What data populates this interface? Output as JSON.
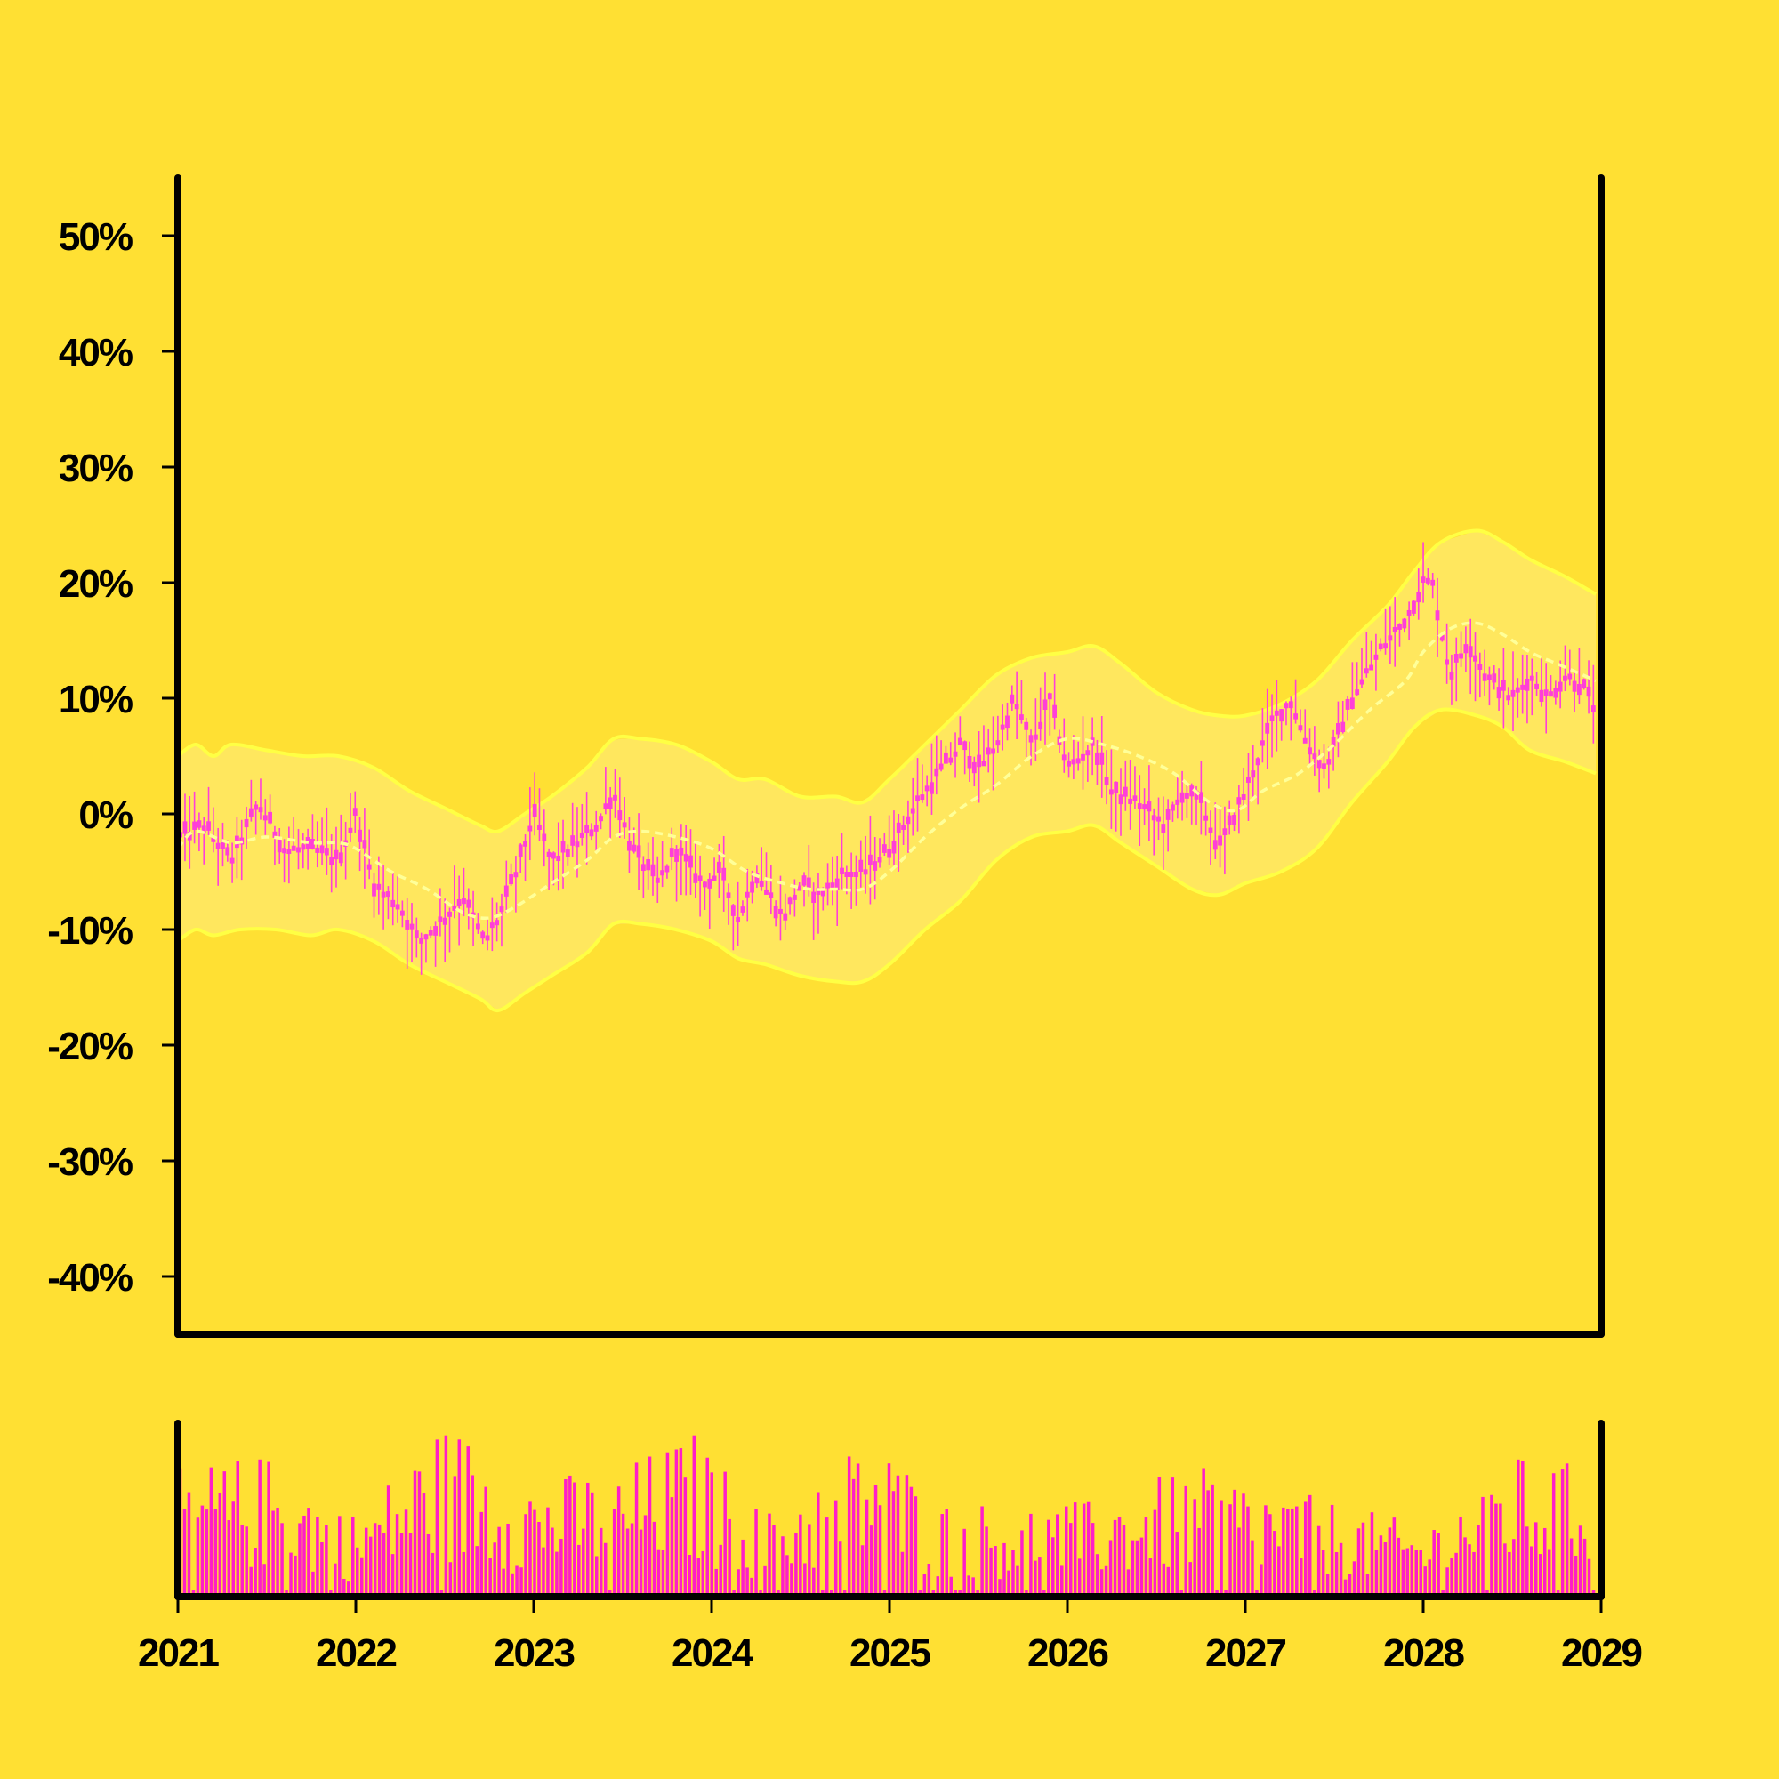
{
  "colors": {
    "background": "#ffe033",
    "candle": "#ff3fd8",
    "band_fill": "#ffe866",
    "band_line": "#ffff44",
    "mid_line": "#ffff99",
    "volume": "#ff1ec8",
    "axis": "#000000"
  },
  "chart_data": [
    {
      "type": "candlestick",
      "title": "",
      "xlabel": "",
      "ylabel": "",
      "xlim": [
        2021,
        2029
      ],
      "ylim": [
        -45,
        55
      ],
      "x_ticks": [
        "2021",
        "2022",
        "2023",
        "2024",
        "2025",
        "2026",
        "2027",
        "2028",
        "2029"
      ],
      "y_ticks": [
        "50%",
        "40%",
        "30%",
        "20%",
        "10%",
        "0%",
        "-10%",
        "-20%",
        "-30%",
        "-40%"
      ],
      "y_tick_values": [
        50,
        40,
        30,
        20,
        10,
        0,
        -10,
        -20,
        -30,
        -40
      ],
      "grid": false,
      "close_path": [
        [
          2021.0,
          -2
        ],
        [
          2021.15,
          -1
        ],
        [
          2021.3,
          -4
        ],
        [
          2021.45,
          1
        ],
        [
          2021.6,
          -3
        ],
        [
          2021.75,
          -3
        ],
        [
          2021.9,
          -4
        ],
        [
          2022.0,
          0
        ],
        [
          2022.1,
          -6
        ],
        [
          2022.25,
          -8
        ],
        [
          2022.35,
          -11
        ],
        [
          2022.5,
          -9
        ],
        [
          2022.6,
          -7
        ],
        [
          2022.72,
          -11
        ],
        [
          2022.8,
          -9
        ],
        [
          2022.9,
          -5
        ],
        [
          2023.0,
          0
        ],
        [
          2023.1,
          -4
        ],
        [
          2023.2,
          -3
        ],
        [
          2023.35,
          -1
        ],
        [
          2023.45,
          2
        ],
        [
          2023.55,
          -3
        ],
        [
          2023.7,
          -6
        ],
        [
          2023.8,
          -3
        ],
        [
          2023.95,
          -6
        ],
        [
          2024.05,
          -5
        ],
        [
          2024.15,
          -9
        ],
        [
          2024.25,
          -5
        ],
        [
          2024.4,
          -9
        ],
        [
          2024.5,
          -6
        ],
        [
          2024.6,
          -7
        ],
        [
          2024.75,
          -5
        ],
        [
          2024.85,
          -5
        ],
        [
          2025.0,
          -3
        ],
        [
          2025.15,
          1
        ],
        [
          2025.3,
          4
        ],
        [
          2025.4,
          6
        ],
        [
          2025.5,
          4
        ],
        [
          2025.6,
          6
        ],
        [
          2025.7,
          10
        ],
        [
          2025.8,
          6
        ],
        [
          2025.9,
          10
        ],
        [
          2026.0,
          4
        ],
        [
          2026.15,
          6
        ],
        [
          2026.25,
          2
        ],
        [
          2026.4,
          1
        ],
        [
          2026.55,
          -1
        ],
        [
          2026.65,
          2
        ],
        [
          2026.75,
          1
        ],
        [
          2026.85,
          -3
        ],
        [
          2027.0,
          2
        ],
        [
          2027.15,
          8
        ],
        [
          2027.25,
          10
        ],
        [
          2027.35,
          6
        ],
        [
          2027.45,
          4
        ],
        [
          2027.6,
          10
        ],
        [
          2027.75,
          14
        ],
        [
          2027.9,
          17
        ],
        [
          2028.0,
          20
        ],
        [
          2028.05,
          20
        ],
        [
          2028.15,
          12
        ],
        [
          2028.25,
          15
        ],
        [
          2028.35,
          12
        ],
        [
          2028.5,
          10
        ],
        [
          2028.6,
          12
        ],
        [
          2028.7,
          10
        ],
        [
          2028.8,
          12
        ],
        [
          2028.9,
          11
        ],
        [
          2028.97,
          9
        ]
      ],
      "moving_average": [
        [
          2021.0,
          -3
        ],
        [
          2021.1,
          -1.5
        ],
        [
          2021.3,
          -2.5
        ],
        [
          2021.5,
          -2
        ],
        [
          2021.75,
          -2.5
        ],
        [
          2021.9,
          -2.5
        ],
        [
          2022.0,
          -3
        ],
        [
          2022.2,
          -5
        ],
        [
          2022.4,
          -6.5
        ],
        [
          2022.6,
          -8.5
        ],
        [
          2022.75,
          -9
        ],
        [
          2022.9,
          -8
        ],
        [
          2023.1,
          -6
        ],
        [
          2023.3,
          -4
        ],
        [
          2023.45,
          -2
        ],
        [
          2023.6,
          -1.5
        ],
        [
          2023.8,
          -2
        ],
        [
          2024.0,
          -3
        ],
        [
          2024.2,
          -5
        ],
        [
          2024.4,
          -6
        ],
        [
          2024.55,
          -6.5
        ],
        [
          2024.7,
          -6.5
        ],
        [
          2024.85,
          -6.5
        ],
        [
          2025.0,
          -5
        ],
        [
          2025.2,
          -2
        ],
        [
          2025.4,
          0.5
        ],
        [
          2025.6,
          2.5
        ],
        [
          2025.8,
          5
        ],
        [
          2026.0,
          6.5
        ],
        [
          2026.2,
          6
        ],
        [
          2026.4,
          5
        ],
        [
          2026.6,
          3.5
        ],
        [
          2026.8,
          1
        ],
        [
          2026.95,
          0.3
        ],
        [
          2027.1,
          2
        ],
        [
          2027.3,
          3.5
        ],
        [
          2027.5,
          6
        ],
        [
          2027.7,
          9
        ],
        [
          2027.9,
          11.5
        ],
        [
          2028.0,
          14
        ],
        [
          2028.15,
          16
        ],
        [
          2028.3,
          16.5
        ],
        [
          2028.45,
          15.5
        ],
        [
          2028.6,
          14
        ],
        [
          2028.75,
          13
        ],
        [
          2028.9,
          12
        ],
        [
          2028.97,
          11.5
        ]
      ],
      "upper_band": [
        [
          2021.0,
          5
        ],
        [
          2021.1,
          6
        ],
        [
          2021.2,
          5
        ],
        [
          2021.3,
          6
        ],
        [
          2021.5,
          5.5
        ],
        [
          2021.7,
          5
        ],
        [
          2021.9,
          5
        ],
        [
          2022.1,
          4
        ],
        [
          2022.3,
          2
        ],
        [
          2022.5,
          0.5
        ],
        [
          2022.7,
          -1
        ],
        [
          2022.8,
          -1.5
        ],
        [
          2022.95,
          0
        ],
        [
          2023.1,
          1.5
        ],
        [
          2023.3,
          4
        ],
        [
          2023.45,
          6.5
        ],
        [
          2023.6,
          6.5
        ],
        [
          2023.8,
          6
        ],
        [
          2024.0,
          4.5
        ],
        [
          2024.15,
          3
        ],
        [
          2024.3,
          3
        ],
        [
          2024.5,
          1.5
        ],
        [
          2024.7,
          1.5
        ],
        [
          2024.85,
          1
        ],
        [
          2025.0,
          3
        ],
        [
          2025.2,
          6
        ],
        [
          2025.4,
          9
        ],
        [
          2025.6,
          12
        ],
        [
          2025.8,
          13.5
        ],
        [
          2026.0,
          14
        ],
        [
          2026.15,
          14.5
        ],
        [
          2026.3,
          13
        ],
        [
          2026.5,
          10.5
        ],
        [
          2026.7,
          9
        ],
        [
          2026.85,
          8.5
        ],
        [
          2027.0,
          8.5
        ],
        [
          2027.2,
          9.5
        ],
        [
          2027.4,
          11.5
        ],
        [
          2027.6,
          15
        ],
        [
          2027.8,
          18
        ],
        [
          2027.95,
          21
        ],
        [
          2028.1,
          23.5
        ],
        [
          2028.3,
          24.5
        ],
        [
          2028.45,
          23.5
        ],
        [
          2028.6,
          22
        ],
        [
          2028.8,
          20.5
        ],
        [
          2028.97,
          19
        ]
      ],
      "lower_band": [
        [
          2021.0,
          -11
        ],
        [
          2021.1,
          -10
        ],
        [
          2021.2,
          -10.5
        ],
        [
          2021.35,
          -10
        ],
        [
          2021.55,
          -10
        ],
        [
          2021.75,
          -10.5
        ],
        [
          2021.9,
          -10
        ],
        [
          2022.1,
          -11
        ],
        [
          2022.3,
          -13
        ],
        [
          2022.5,
          -14.5
        ],
        [
          2022.7,
          -16
        ],
        [
          2022.8,
          -17
        ],
        [
          2022.95,
          -15.5
        ],
        [
          2023.1,
          -14
        ],
        [
          2023.3,
          -12
        ],
        [
          2023.45,
          -9.5
        ],
        [
          2023.6,
          -9.5
        ],
        [
          2023.8,
          -10
        ],
        [
          2024.0,
          -11
        ],
        [
          2024.15,
          -12.5
        ],
        [
          2024.3,
          -13
        ],
        [
          2024.5,
          -14
        ],
        [
          2024.7,
          -14.5
        ],
        [
          2024.85,
          -14.5
        ],
        [
          2025.0,
          -13
        ],
        [
          2025.2,
          -10
        ],
        [
          2025.4,
          -7.5
        ],
        [
          2025.6,
          -4
        ],
        [
          2025.8,
          -2
        ],
        [
          2026.0,
          -1.5
        ],
        [
          2026.15,
          -1
        ],
        [
          2026.3,
          -2.5
        ],
        [
          2026.5,
          -4.5
        ],
        [
          2026.7,
          -6.5
        ],
        [
          2026.85,
          -7
        ],
        [
          2027.0,
          -6
        ],
        [
          2027.2,
          -5
        ],
        [
          2027.4,
          -3
        ],
        [
          2027.6,
          1
        ],
        [
          2027.8,
          4.5
        ],
        [
          2027.95,
          7.5
        ],
        [
          2028.1,
          9
        ],
        [
          2028.3,
          8.5
        ],
        [
          2028.45,
          7.5
        ],
        [
          2028.6,
          5.5
        ],
        [
          2028.8,
          4.5
        ],
        [
          2028.97,
          3.5
        ]
      ]
    },
    {
      "type": "bar",
      "title": "",
      "xlabel": "",
      "ylabel": "",
      "xlim": [
        2021,
        2029
      ],
      "ylim": [
        0,
        1
      ],
      "volume_profile": [
        [
          2021.0,
          0.55
        ],
        [
          2021.5,
          0.6
        ],
        [
          2022.0,
          0.35
        ],
        [
          2022.5,
          0.75
        ],
        [
          2023.0,
          0.5
        ],
        [
          2023.5,
          0.55
        ],
        [
          2023.9,
          0.7
        ],
        [
          2024.3,
          0.35
        ],
        [
          2024.9,
          0.7
        ],
        [
          2025.3,
          0.4
        ],
        [
          2025.8,
          0.4
        ],
        [
          2026.1,
          0.4
        ],
        [
          2026.7,
          0.55
        ],
        [
          2027.0,
          0.5
        ],
        [
          2027.5,
          0.4
        ],
        [
          2028.0,
          0.3
        ],
        [
          2028.5,
          0.6
        ],
        [
          2028.97,
          0.55
        ]
      ]
    }
  ]
}
